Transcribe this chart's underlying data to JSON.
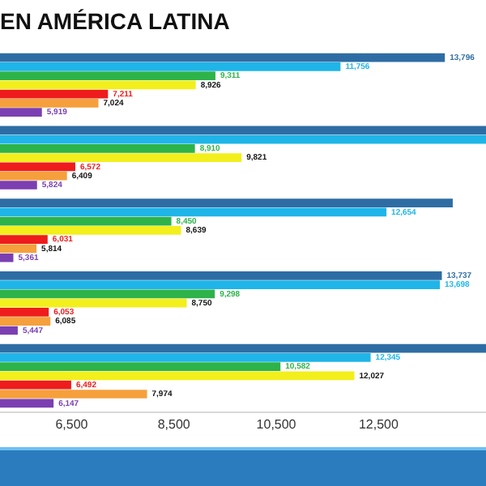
{
  "chart_data": {
    "type": "bar",
    "orientation": "horizontal",
    "title": "EN AMÉRICA LATINA",
    "categories": [
      null,
      null,
      null,
      null,
      null
    ],
    "series": [
      {
        "color": "#2e6da4",
        "values": [
          13796,
          14600,
          13950,
          13737,
          14600
        ],
        "value_labels": [
          "13,796",
          null,
          null,
          "13,737",
          null
        ]
      },
      {
        "color": "#1fb5e8",
        "values": [
          11756,
          14600,
          12654,
          13698,
          12345
        ],
        "value_labels": [
          "11,756",
          null,
          "12,654",
          "13,698",
          "12,345"
        ]
      },
      {
        "color": "#2db34a",
        "values": [
          9311,
          8910,
          8450,
          9298,
          10582
        ],
        "value_labels": [
          "9,311",
          "8,910",
          "8,450",
          "9,298",
          "10,582"
        ]
      },
      {
        "color": "#f2ef1c",
        "values": [
          8926,
          9821,
          8639,
          8750,
          12027
        ],
        "value_labels": [
          "8,926",
          "9,821",
          "8,639",
          "8,750",
          "12,027"
        ]
      },
      {
        "color": "#ee1c1c",
        "values": [
          7211,
          6572,
          6031,
          6053,
          6492
        ],
        "value_labels": [
          "7,211",
          "6,572",
          "6,031",
          "6,053",
          "6,492"
        ]
      },
      {
        "color": "#f5a03c",
        "values": [
          7024,
          6409,
          5814,
          6085,
          7974
        ],
        "value_labels": [
          "7,024",
          "6,409",
          "5,814",
          "6,085",
          "7,974"
        ]
      },
      {
        "color": "#7b3fb2",
        "values": [
          5919,
          5824,
          5361,
          5447,
          6147
        ],
        "value_labels": [
          "5,919",
          "5,824",
          "5,361",
          "5,447",
          "6,147"
        ]
      }
    ],
    "xlim": [
      5100,
      14600
    ],
    "xticks": [
      {
        "value": 6500,
        "label": "6,500"
      },
      {
        "value": 8500,
        "label": "8,500"
      },
      {
        "value": 10500,
        "label": "10,500"
      },
      {
        "value": 12500,
        "label": "12,500"
      }
    ],
    "grid": false,
    "legend": false
  }
}
